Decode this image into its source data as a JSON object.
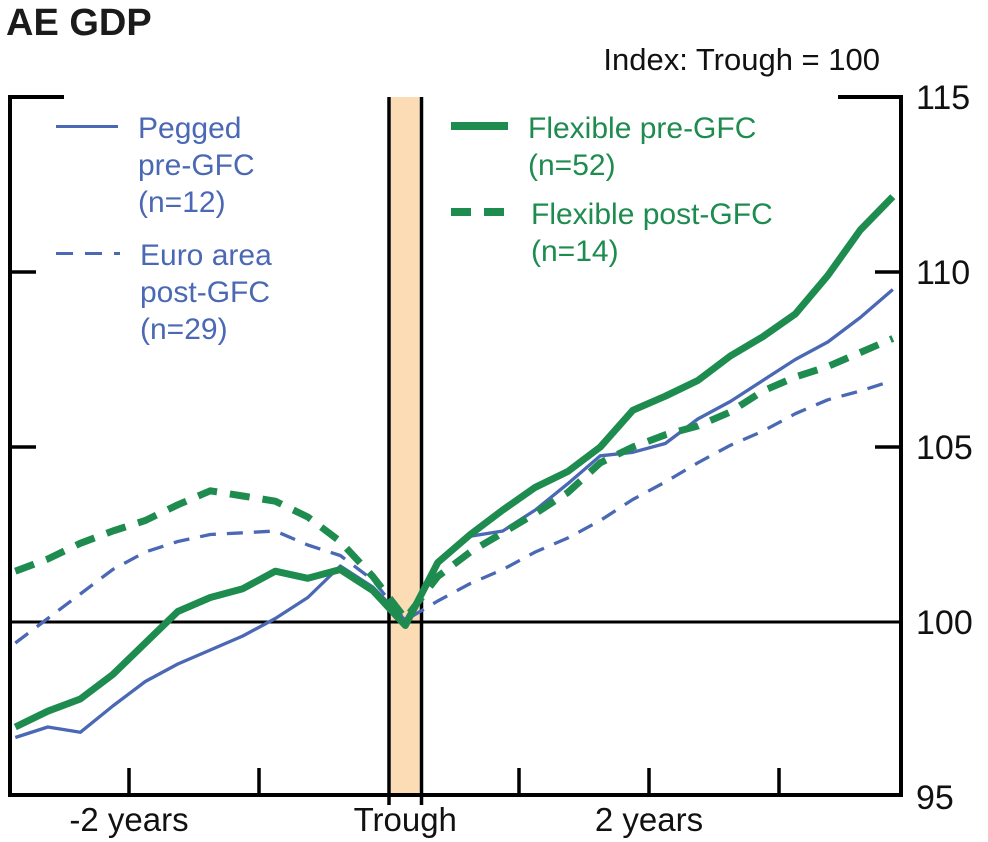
{
  "title": "AE GDP",
  "index_note": "Index: Trough = 100",
  "colors": {
    "blue": "#4a68b4",
    "green": "#1e8b4f",
    "band": "#fbdcb5",
    "axis": "#000000",
    "text": "#111111"
  },
  "legend": {
    "pegged_pre_gfc": {
      "label": "Pegged\npre-GFC\n(n=12)"
    },
    "euro_area_post_gfc": {
      "label": "Euro area\npost-GFC\n(n=29)"
    },
    "flexible_pre_gfc": {
      "label": "Flexible pre-GFC\n(n=52)"
    },
    "flexible_post_gfc": {
      "label": "Flexible post-GFC\n(n=14)"
    }
  },
  "chart_data": {
    "type": "line",
    "title": "AE GDP",
    "note": "Index: Trough = 100",
    "x_unit": "quarters relative to GDP trough (trough quarter = 0)",
    "x_quarters": [
      -12,
      -11,
      -10,
      -9,
      -8,
      -7,
      -6,
      -5,
      -4,
      -3,
      -2,
      -1,
      0,
      1,
      2,
      3,
      4,
      5,
      6,
      7,
      8,
      9,
      10,
      11,
      12,
      13,
      14,
      15
    ],
    "series": [
      {
        "id": "pegged-pre-gfc",
        "name": "Pegged pre-GFC (n=12)",
        "color": "blue",
        "dash": false,
        "width": "thin",
        "values": [
          96.7,
          97.0,
          96.85,
          97.6,
          98.3,
          98.8,
          99.2,
          99.6,
          100.1,
          100.7,
          101.6,
          101.0,
          100.05,
          101.7,
          102.45,
          102.6,
          103.2,
          103.95,
          104.75,
          104.85,
          105.1,
          105.8,
          106.3,
          106.9,
          107.5,
          108.0,
          108.7,
          109.5
        ]
      },
      {
        "id": "euro-area-post-gfc",
        "name": "Euro area post-GFC (n=29)",
        "color": "blue",
        "dash": true,
        "width": "thin",
        "values": [
          99.4,
          100.1,
          100.8,
          101.5,
          102.0,
          102.3,
          102.5,
          102.55,
          102.6,
          102.2,
          101.9,
          101.2,
          100.05,
          100.6,
          101.1,
          101.5,
          102.0,
          102.4,
          102.9,
          103.5,
          104.0,
          104.55,
          105.05,
          105.45,
          105.95,
          106.35,
          106.6,
          106.9
        ]
      },
      {
        "id": "flexible-pre-gfc",
        "name": "Flexible pre-GFC (n=52)",
        "color": "green",
        "dash": false,
        "width": "thick",
        "values": [
          97.0,
          97.45,
          97.8,
          98.5,
          99.4,
          100.3,
          100.7,
          100.95,
          101.45,
          101.25,
          101.5,
          100.9,
          99.9,
          101.7,
          102.5,
          103.2,
          103.85,
          104.3,
          105.0,
          106.05,
          106.45,
          106.9,
          107.6,
          108.15,
          108.8,
          109.9,
          111.2,
          112.15
        ]
      },
      {
        "id": "flexible-post-gfc",
        "name": "Flexible post-GFC (n=14)",
        "color": "green",
        "dash": true,
        "width": "thick",
        "values": [
          101.45,
          101.8,
          102.25,
          102.6,
          102.9,
          103.35,
          103.75,
          103.6,
          103.45,
          103.0,
          102.3,
          101.3,
          100.1,
          101.3,
          102.0,
          102.55,
          103.1,
          103.7,
          104.55,
          105.0,
          105.35,
          105.6,
          106.0,
          106.6,
          107.0,
          107.3,
          107.7,
          108.1
        ]
      }
    ],
    "ylim": [
      95,
      115
    ],
    "y_ticks": [
      115,
      110,
      105,
      100,
      95
    ],
    "baseline_value": 100,
    "x_tick_years": [
      -2,
      -1,
      0,
      1,
      2,
      3
    ],
    "x_tick_labels": {
      "-2": "-2 years",
      "0": "Trough",
      "2": "2 years"
    },
    "trough_band_quarters": [
      0,
      1
    ],
    "grid": "off",
    "legend_position": "top-inside"
  }
}
